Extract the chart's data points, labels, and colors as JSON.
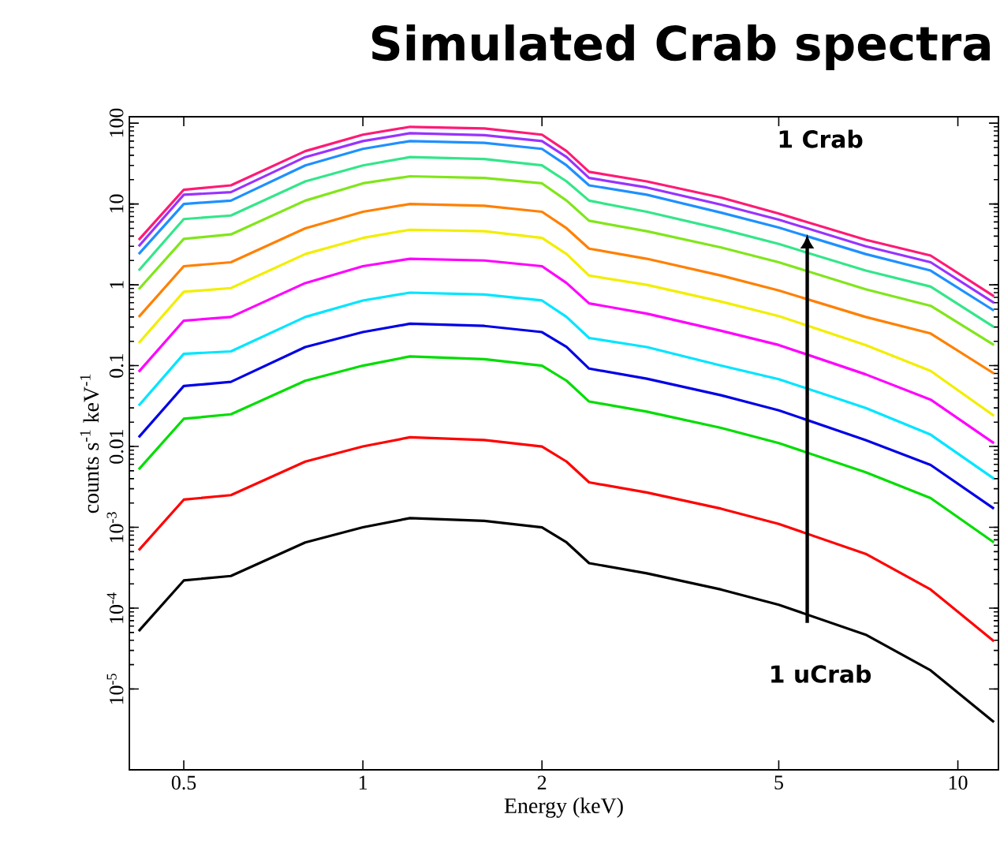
{
  "chart_data": {
    "type": "line",
    "title": "Simulated Crab spectra",
    "xlabel": "Energy (keV)",
    "ylabel": "counts s$^{-1}$ keV$^{-1}$",
    "log": "xy",
    "xlim": [
      0.405,
      11.7
    ],
    "ylim": [
      1e-06,
      120
    ],
    "xticks": [
      0.5,
      1,
      2,
      5,
      10
    ],
    "yticks": [
      {
        "value": 1e-05,
        "label": "10$^{-5}$"
      },
      {
        "value": 0.0001,
        "label": "10$^{-4}$"
      },
      {
        "value": 0.001,
        "label": "10$^{-3}$"
      },
      0.01,
      0.1,
      1,
      10,
      100
    ],
    "x": [
      0.42,
      0.5,
      0.6,
      0.8,
      1.0,
      1.2,
      1.6,
      2.0,
      2.2,
      2.4,
      3,
      4,
      5,
      7,
      9,
      11.5
    ],
    "series": [
      {
        "color": "#ff1a75",
        "values": [
          3.6,
          15,
          17,
          45,
          72,
          90,
          86,
          72,
          45,
          25,
          19,
          12,
          7.6,
          3.6,
          2.3,
          0.72
        ]
      },
      {
        "color": "#9933ff",
        "values": [
          3.0,
          13,
          14,
          38,
          60,
          75,
          71,
          60,
          38,
          21,
          16,
          9.8,
          6.4,
          3.0,
          1.9,
          0.6
        ]
      },
      {
        "color": "#1e90ff",
        "values": [
          2.4,
          10,
          11,
          30,
          48,
          60,
          57,
          48,
          30,
          17,
          13,
          7.8,
          5.1,
          2.4,
          1.5,
          0.48
        ]
      },
      {
        "color": "#33e68a",
        "values": [
          1.5,
          6.5,
          7.2,
          19,
          30,
          38,
          36,
          30,
          19,
          11,
          8.0,
          4.9,
          3.2,
          1.5,
          0.95,
          0.3
        ]
      },
      {
        "color": "#80e61a",
        "values": [
          0.88,
          3.7,
          4.2,
          11,
          18,
          22,
          21,
          18,
          11,
          6.2,
          4.6,
          2.9,
          1.9,
          0.88,
          0.55,
          0.18
        ]
      },
      {
        "color": "#ff8000",
        "values": [
          0.4,
          1.7,
          1.9,
          5.0,
          8.0,
          10,
          9.5,
          8.0,
          5.0,
          2.8,
          2.1,
          1.3,
          0.85,
          0.4,
          0.25,
          0.08
        ]
      },
      {
        "color": "#f2ee00",
        "values": [
          0.19,
          0.82,
          0.91,
          2.4,
          3.8,
          4.8,
          4.6,
          3.8,
          2.4,
          1.3,
          1.0,
          0.62,
          0.41,
          0.18,
          0.086,
          0.024
        ]
      },
      {
        "color": "#ff00ff",
        "values": [
          0.084,
          0.36,
          0.4,
          1.05,
          1.7,
          2.1,
          2.0,
          1.7,
          1.05,
          0.59,
          0.44,
          0.27,
          0.18,
          0.078,
          0.038,
          0.011
        ]
      },
      {
        "color": "#00e5ff",
        "values": [
          0.032,
          0.14,
          0.15,
          0.4,
          0.64,
          0.8,
          0.76,
          0.64,
          0.4,
          0.22,
          0.17,
          0.1,
          0.068,
          0.03,
          0.014,
          0.004
        ]
      },
      {
        "color": "#0000e6",
        "values": [
          0.013,
          0.056,
          0.063,
          0.17,
          0.26,
          0.33,
          0.31,
          0.26,
          0.17,
          0.092,
          0.069,
          0.043,
          0.028,
          0.012,
          0.0059,
          0.0017
        ]
      },
      {
        "color": "#00dd00",
        "values": [
          0.0052,
          0.022,
          0.025,
          0.065,
          0.1,
          0.13,
          0.12,
          0.1,
          0.065,
          0.036,
          0.027,
          0.017,
          0.011,
          0.0048,
          0.0023,
          0.00065
        ]
      },
      {
        "color": "#ff0000",
        "values": [
          0.00052,
          0.0022,
          0.0025,
          0.0065,
          0.01,
          0.013,
          0.012,
          0.01,
          0.0065,
          0.0036,
          0.0027,
          0.0017,
          0.0011,
          0.00047,
          0.00017,
          3.9e-05
        ]
      },
      {
        "color": "#000000",
        "values": [
          5.2e-05,
          0.00022,
          0.00025,
          0.00065,
          0.001,
          0.0013,
          0.0012,
          0.001,
          0.00065,
          0.00036,
          0.00027,
          0.00017,
          0.00011,
          4.7e-05,
          1.7e-05,
          3.9e-06
        ]
      }
    ],
    "annotations": [
      "1 Crab",
      "1 uCrab"
    ]
  }
}
